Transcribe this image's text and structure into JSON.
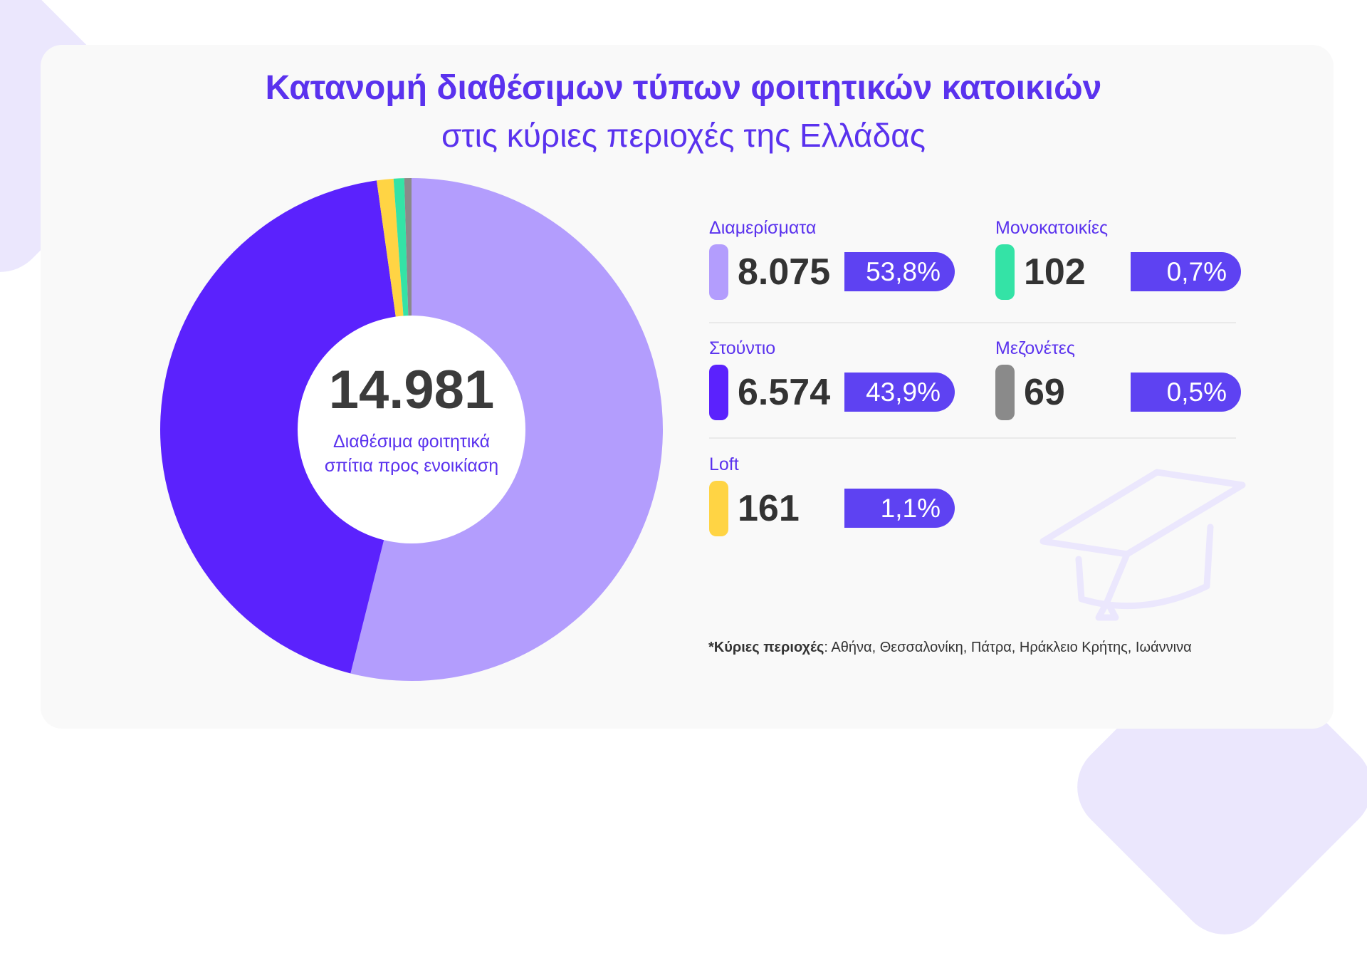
{
  "title": "Κατανομή διαθέσιμων τύπων φοιτητικών κατοικιών",
  "subtitle": "στις κύριες περιοχές της Ελλάδας",
  "center": {
    "total": "14.981",
    "label_line1": "Διαθέσιμα φοιτητικά",
    "label_line2": "σπίτια προς ενοικίαση"
  },
  "footnote": {
    "prefix": "*Κύριες περιοχές",
    "text": ": Αθήνα, Θεσσαλονίκη, Πάτρα, Ηράκλειο Κρήτης, Ιωάννινα"
  },
  "icons": {
    "decoration": "graduation-cap-icon"
  },
  "colors": {
    "accent": "#5a32ee",
    "badge": "#5e42f2",
    "background": "#f9f9f9"
  },
  "chart_data": {
    "type": "pie",
    "title": "Κατανομή διαθέσιμων τύπων φοιτητικών κατοικιών",
    "subtitle": "στις κύριες περιοχές της Ελλάδας",
    "total": 14981,
    "series": [
      {
        "name": "Διαμερίσματα",
        "value": 8075,
        "value_label": "8.075",
        "percent": 53.8,
        "percent_label": "53,8%",
        "color": "#b39dfd"
      },
      {
        "name": "Στούντιο",
        "value": 6574,
        "value_label": "6.574",
        "percent": 43.9,
        "percent_label": "43,9%",
        "color": "#5b22fd"
      },
      {
        "name": "Loft",
        "value": 161,
        "value_label": "161",
        "percent": 1.1,
        "percent_label": "1,1%",
        "color": "#ffd444"
      },
      {
        "name": "Μονοκατοικίες",
        "value": 102,
        "value_label": "102",
        "percent": 0.7,
        "percent_label": "0,7%",
        "color": "#34e3a6"
      },
      {
        "name": "Μεζονέτες",
        "value": 69,
        "value_label": "69",
        "percent": 0.5,
        "percent_label": "0,5%",
        "color": "#8a8a8a"
      }
    ]
  }
}
